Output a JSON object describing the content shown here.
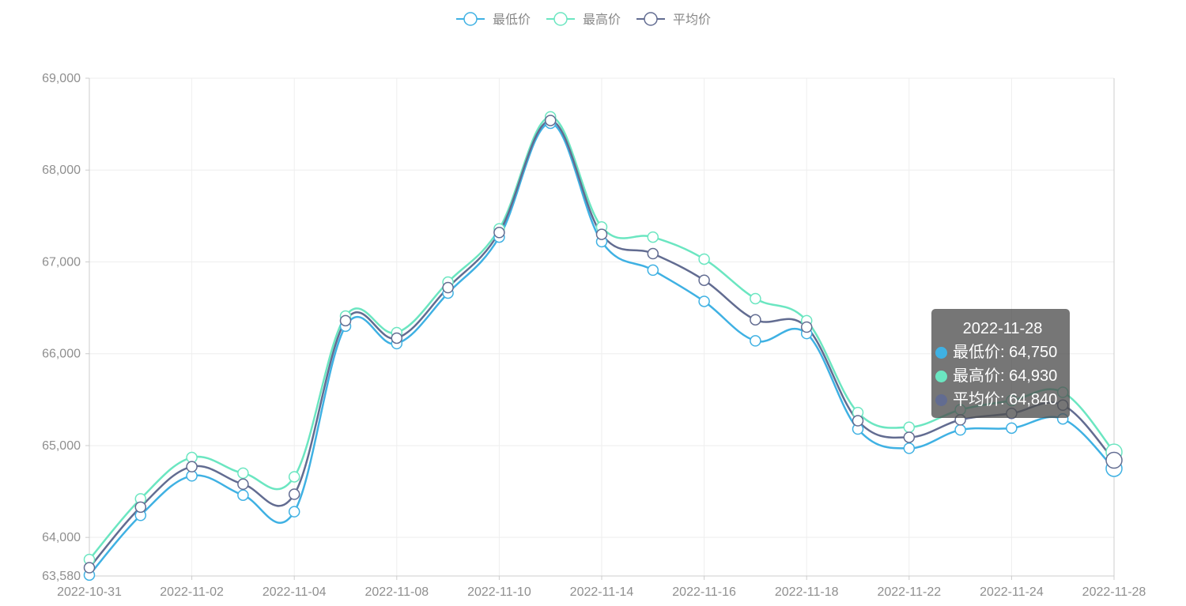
{
  "legend": {
    "items": [
      {
        "label": "最低价",
        "color": "#3fb1e3"
      },
      {
        "label": "最高价",
        "color": "#6be6c1"
      },
      {
        "label": "平均价",
        "color": "#626c91"
      }
    ]
  },
  "tooltip": {
    "title": "2022-11-28",
    "rows": [
      {
        "text": "最低价: 64,750",
        "color": "#3fb1e3"
      },
      {
        "text": "最高价: 64,930",
        "color": "#6be6c1"
      },
      {
        "text": "平均价: 64,840",
        "color": "#626c91"
      }
    ]
  },
  "chart_data": {
    "type": "line",
    "title": "",
    "xlabel": "",
    "ylabel": "",
    "ylim": [
      63580,
      69000
    ],
    "y_ticks": [
      "63,580",
      "64,000",
      "65,000",
      "66,000",
      "67,000",
      "68,000",
      "69,000"
    ],
    "y_tick_values": [
      63580,
      64000,
      65000,
      66000,
      67000,
      68000,
      69000
    ],
    "x_tick_labels": [
      "2022-10-31",
      "2022-11-02",
      "2022-11-04",
      "2022-11-08",
      "2022-11-10",
      "2022-11-14",
      "2022-11-16",
      "2022-11-18",
      "2022-11-22",
      "2022-11-24",
      "2022-11-28"
    ],
    "x_tick_every": 2,
    "grid": true,
    "legend_position": "top-center",
    "point_count": 21,
    "highlighted_index": 20,
    "series": [
      {
        "name": "最低价",
        "color": "#3fb1e3",
        "values": [
          63590,
          64240,
          64670,
          64460,
          64280,
          66300,
          66110,
          66660,
          67270,
          68510,
          67220,
          66910,
          66570,
          66140,
          66220,
          65180,
          64970,
          65170,
          65190,
          65290,
          64750
        ]
      },
      {
        "name": "最高价",
        "color": "#6be6c1",
        "values": [
          63760,
          64420,
          64870,
          64700,
          64660,
          66410,
          66230,
          66780,
          67360,
          68580,
          67380,
          67270,
          67030,
          66600,
          66360,
          65360,
          65200,
          65390,
          65490,
          65580,
          64930
        ]
      },
      {
        "name": "平均价",
        "color": "#626c91",
        "values": [
          63670,
          64330,
          64770,
          64580,
          64470,
          66360,
          66170,
          66720,
          67320,
          68540,
          67300,
          67090,
          66800,
          66370,
          66290,
          65270,
          65090,
          65280,
          65350,
          65440,
          64840
        ]
      }
    ]
  }
}
